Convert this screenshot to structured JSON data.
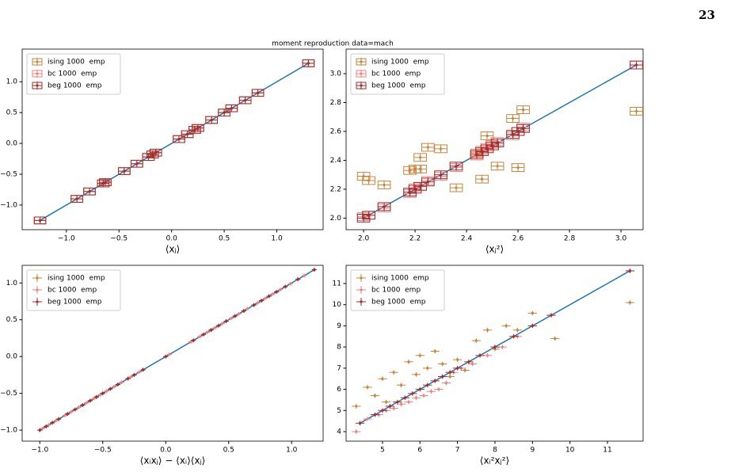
{
  "page_number": "23",
  "suptitle": "moment reproduction data=mach",
  "chart_data": [
    {
      "type": "scatter",
      "errorbar_style": "box",
      "xlabel": "⟨xⱼ⟩",
      "xlim": [
        -1.42,
        1.44
      ],
      "ylim": [
        -1.4,
        1.53
      ],
      "xticks": [
        {
          "value": -1,
          "label": "−1.0"
        },
        {
          "value": -0.5,
          "label": "−0.5"
        },
        {
          "value": 0,
          "label": "0.0"
        },
        0.5,
        {
          "value": 1,
          "label": "1.0"
        }
      ],
      "yticks": [
        {
          "value": -1,
          "label": "−1.0"
        },
        {
          "value": -0.5,
          "label": "−0.5"
        },
        {
          "value": 0,
          "label": "0.0"
        },
        0.5,
        {
          "value": 1,
          "label": "1.0"
        }
      ],
      "diagonal": [
        -1.25,
        1.3
      ],
      "diagonal_color": "#1f77b4",
      "legend": "upper left",
      "series": [
        {
          "name": "ising 1000  emp",
          "color": "#c8843c",
          "xerr": 0.04,
          "yerr": 0.03,
          "x": [
            -1.25,
            -0.9,
            -0.78,
            -0.65,
            -0.63,
            -0.45,
            -0.33,
            -0.22,
            -0.18,
            -0.15,
            0.07,
            0.15,
            0.22,
            0.25,
            0.38,
            0.5,
            0.57,
            0.7,
            0.82,
            1.3
          ],
          "y": [
            -1.25,
            -0.9,
            -0.78,
            -0.65,
            -0.63,
            -0.45,
            -0.33,
            -0.22,
            -0.18,
            -0.15,
            0.07,
            0.15,
            0.22,
            0.25,
            0.38,
            0.5,
            0.57,
            0.7,
            0.82,
            1.3
          ]
        },
        {
          "name": "bc 1000  emp",
          "color": "#f08080",
          "xerr": 0.04,
          "yerr": 0.03,
          "x": [
            -1.25,
            -0.9,
            -0.78,
            -0.65,
            -0.63,
            -0.45,
            -0.33,
            -0.22,
            -0.18,
            -0.15,
            0.07,
            0.15,
            0.22,
            0.25,
            0.38,
            0.5,
            0.57,
            0.7,
            0.82,
            1.3
          ],
          "y": [
            -1.25,
            -0.9,
            -0.78,
            -0.65,
            -0.63,
            -0.45,
            -0.33,
            -0.22,
            -0.18,
            -0.15,
            0.07,
            0.15,
            0.22,
            0.25,
            0.38,
            0.5,
            0.57,
            0.7,
            0.82,
            1.3
          ]
        },
        {
          "name": "beg 1000  emp",
          "color": "#a52a2a",
          "xerr": 0.04,
          "yerr": 0.03,
          "x": [
            -1.25,
            -0.9,
            -0.78,
            -0.65,
            -0.63,
            -0.45,
            -0.33,
            -0.22,
            -0.18,
            -0.15,
            0.07,
            0.15,
            0.22,
            0.25,
            0.38,
            0.5,
            0.57,
            0.7,
            0.82,
            1.3
          ],
          "y": [
            -1.25,
            -0.9,
            -0.78,
            -0.65,
            -0.63,
            -0.45,
            -0.33,
            -0.22,
            -0.18,
            -0.15,
            0.07,
            0.15,
            0.22,
            0.25,
            0.38,
            0.5,
            0.57,
            0.7,
            0.82,
            1.3
          ]
        }
      ]
    },
    {
      "type": "scatter",
      "errorbar_style": "box",
      "xlabel": "⟨xⱼ²⟩",
      "xlim": [
        1.932,
        3.086
      ],
      "ylim": [
        1.92,
        3.17
      ],
      "xticks": [
        {
          "value": 2,
          "label": "2.0"
        },
        2.2,
        2.4,
        2.6,
        2.8,
        {
          "value": 3,
          "label": "3.0"
        }
      ],
      "yticks": [
        {
          "value": 2,
          "label": "2.0"
        },
        2.2,
        2.4,
        2.6,
        2.8,
        {
          "value": 3,
          "label": "3.0"
        }
      ],
      "diagonal": [
        2.0,
        3.06
      ],
      "diagonal_color": "#1f77b4",
      "legend": "upper left",
      "series": [
        {
          "name": "ising 1000  emp",
          "color": "#c8843c",
          "xerr": 0.018,
          "yerr": 0.016,
          "x": [
            2.0,
            2.02,
            2.08,
            2.18,
            2.2,
            2.22,
            2.22,
            2.25,
            2.3,
            2.36,
            2.44,
            2.46,
            2.48,
            2.52,
            2.58,
            2.6,
            2.62,
            3.06
          ],
          "y": [
            2.29,
            2.26,
            2.23,
            2.33,
            2.34,
            2.34,
            2.42,
            2.49,
            2.48,
            2.21,
            2.45,
            2.27,
            2.57,
            2.36,
            2.69,
            2.35,
            2.75,
            2.74
          ]
        },
        {
          "name": "bc 1000  emp",
          "color": "#f08080",
          "xerr": 0.018,
          "yerr": 0.016,
          "x": [
            2.0,
            2.02,
            2.08,
            2.18,
            2.2,
            2.22,
            2.25,
            2.3,
            2.36,
            2.44,
            2.46,
            2.48,
            2.5,
            2.52,
            2.58,
            2.6,
            2.62,
            3.06
          ],
          "y": [
            2.01,
            2.02,
            2.07,
            2.17,
            2.21,
            2.22,
            2.26,
            2.29,
            2.35,
            2.43,
            2.47,
            2.49,
            2.51,
            2.53,
            2.57,
            2.6,
            2.63,
            3.06
          ]
        },
        {
          "name": "beg 1000  emp",
          "color": "#a52a2a",
          "xerr": 0.018,
          "yerr": 0.016,
          "x": [
            2.0,
            2.02,
            2.08,
            2.18,
            2.2,
            2.22,
            2.25,
            2.3,
            2.36,
            2.44,
            2.46,
            2.48,
            2.5,
            2.52,
            2.58,
            2.6,
            2.62,
            3.06
          ],
          "y": [
            2.0,
            2.02,
            2.08,
            2.18,
            2.2,
            2.22,
            2.25,
            2.3,
            2.36,
            2.44,
            2.46,
            2.48,
            2.5,
            2.52,
            2.58,
            2.6,
            2.62,
            3.06
          ]
        }
      ]
    },
    {
      "type": "scatter",
      "errorbar_style": "bar",
      "xlabel": "⟨xᵢxⱼ⟩ − ⟨xᵢ⟩⟨xⱼ⟩",
      "xlim": [
        -1.14,
        1.25
      ],
      "ylim": [
        -1.15,
        1.24
      ],
      "xticks": [
        {
          "value": -1,
          "label": "−1.0"
        },
        {
          "value": -0.5,
          "label": "−0.5"
        },
        {
          "value": 0,
          "label": "0.0"
        },
        0.5,
        {
          "value": 1,
          "label": "1.0"
        }
      ],
      "yticks": [
        {
          "value": -1,
          "label": "−1.0"
        },
        {
          "value": -0.5,
          "label": "−0.5"
        },
        {
          "value": 0,
          "label": "0.0"
        },
        0.5,
        {
          "value": 1,
          "label": "1.0"
        }
      ],
      "diagonal": [
        -1.0,
        1.18
      ],
      "diagonal_color": "#1f77b4",
      "legend": "upper left",
      "series": [
        {
          "name": "ising 1000  emp",
          "color": "#c8843c",
          "xerr": 0.02,
          "yerr": 0.01,
          "x": [
            -1.0,
            -0.95,
            -0.9,
            -0.85,
            -0.78,
            -0.72,
            -0.66,
            -0.6,
            -0.55,
            -0.5,
            -0.44,
            -0.38,
            -0.3,
            -0.25,
            -0.18,
            0.0,
            0.22,
            0.3,
            0.36,
            0.42,
            0.48,
            0.55,
            0.62,
            0.7,
            0.76,
            0.82,
            0.88,
            0.95,
            1.05,
            1.18
          ],
          "y": [
            -1.0,
            -0.95,
            -0.9,
            -0.85,
            -0.78,
            -0.72,
            -0.66,
            -0.6,
            -0.55,
            -0.5,
            -0.44,
            -0.38,
            -0.3,
            -0.25,
            -0.18,
            0.0,
            0.22,
            0.3,
            0.36,
            0.42,
            0.48,
            0.55,
            0.62,
            0.7,
            0.76,
            0.82,
            0.88,
            0.95,
            1.05,
            1.18
          ]
        },
        {
          "name": "bc 1000  emp",
          "color": "#f08080",
          "xerr": 0.02,
          "yerr": 0.01,
          "x": [
            -0.98,
            -0.93,
            -0.87,
            -0.8,
            -0.75,
            -0.69,
            -0.63,
            -0.57,
            -0.52,
            -0.47,
            -0.41,
            -0.35,
            -0.28,
            -0.21,
            0.03,
            0.2,
            0.27,
            0.33,
            0.39,
            0.45,
            0.52,
            0.58,
            0.65,
            0.73,
            0.79,
            0.85,
            0.91,
            0.99,
            1.1
          ],
          "y": [
            -0.98,
            -0.93,
            -0.87,
            -0.8,
            -0.75,
            -0.69,
            -0.63,
            -0.57,
            -0.52,
            -0.47,
            -0.41,
            -0.35,
            -0.28,
            -0.21,
            0.03,
            0.2,
            0.27,
            0.33,
            0.39,
            0.45,
            0.52,
            0.58,
            0.65,
            0.73,
            0.79,
            0.85,
            0.91,
            0.99,
            1.1
          ]
        },
        {
          "name": "beg 1000  emp",
          "color": "#a52a2a",
          "xerr": 0.02,
          "yerr": 0.01,
          "x": [
            -1.0,
            -0.95,
            -0.9,
            -0.85,
            -0.78,
            -0.72,
            -0.66,
            -0.6,
            -0.55,
            -0.5,
            -0.44,
            -0.38,
            -0.3,
            -0.25,
            -0.18,
            0.0,
            0.22,
            0.3,
            0.36,
            0.42,
            0.48,
            0.55,
            0.62,
            0.7,
            0.76,
            0.82,
            0.88,
            0.95,
            1.05,
            1.18
          ],
          "y": [
            -1.0,
            -0.95,
            -0.9,
            -0.85,
            -0.78,
            -0.72,
            -0.66,
            -0.6,
            -0.55,
            -0.5,
            -0.44,
            -0.38,
            -0.3,
            -0.25,
            -0.18,
            0.0,
            0.22,
            0.3,
            0.36,
            0.42,
            0.48,
            0.55,
            0.62,
            0.7,
            0.76,
            0.82,
            0.88,
            0.95,
            1.05,
            1.18
          ]
        }
      ]
    },
    {
      "type": "scatter",
      "errorbar_style": "bar",
      "xlabel": "⟨xᵢ²xⱼ²⟩",
      "xlim": [
        4.03,
        11.95
      ],
      "ylim": [
        3.55,
        11.86
      ],
      "xticks": [
        5,
        6,
        7,
        8,
        9,
        10,
        11
      ],
      "yticks": [
        4,
        5,
        6,
        7,
        8,
        9,
        10,
        11
      ],
      "diagonal": [
        4.4,
        11.6
      ],
      "diagonal_color": "#1f77b4",
      "legend": "upper left",
      "series": [
        {
          "name": "ising 1000  emp",
          "color": "#c8843c",
          "xerr": 0.12,
          "yerr": 0.05,
          "x": [
            4.3,
            4.6,
            4.8,
            5.0,
            5.1,
            5.3,
            5.5,
            5.7,
            5.9,
            6.0,
            6.2,
            6.4,
            6.6,
            6.8,
            7.0,
            7.2,
            7.5,
            7.8,
            8.0,
            8.3,
            8.6,
            9.0,
            9.6,
            11.6
          ],
          "y": [
            5.2,
            6.1,
            5.7,
            6.5,
            5.4,
            6.8,
            6.2,
            7.3,
            6.7,
            7.6,
            7.0,
            7.8,
            7.2,
            6.6,
            7.4,
            6.9,
            8.3,
            8.8,
            7.9,
            9.0,
            8.8,
            9.6,
            8.4,
            10.1
          ]
        },
        {
          "name": "bc 1000  emp",
          "color": "#f08080",
          "xerr": 0.12,
          "yerr": 0.05,
          "x": [
            4.3,
            4.6,
            4.9,
            5.1,
            5.3,
            5.5,
            5.7,
            5.9,
            6.1,
            6.3,
            6.5,
            6.7,
            6.9,
            7.1,
            7.4,
            7.8,
            8.2,
            8.6,
            9.5,
            11.6
          ],
          "y": [
            4.0,
            4.6,
            4.8,
            5.0,
            5.1,
            5.3,
            5.4,
            5.6,
            5.7,
            5.9,
            6.0,
            6.3,
            6.8,
            7.0,
            7.2,
            7.6,
            8.0,
            8.5,
            9.5,
            11.6
          ]
        },
        {
          "name": "beg 1000  emp",
          "color": "#a52a2a",
          "xerr": 0.12,
          "yerr": 0.05,
          "x": [
            4.4,
            4.8,
            5.0,
            5.2,
            5.4,
            5.6,
            5.8,
            6.0,
            6.2,
            6.4,
            6.6,
            6.8,
            7.0,
            7.3,
            7.6,
            8.0,
            8.5,
            9.0,
            9.5,
            11.6
          ],
          "y": [
            4.4,
            4.8,
            5.0,
            5.2,
            5.4,
            5.6,
            5.8,
            6.0,
            6.2,
            6.4,
            6.6,
            6.8,
            7.0,
            7.3,
            7.6,
            8.0,
            8.5,
            9.0,
            9.5,
            11.6
          ]
        }
      ]
    }
  ]
}
